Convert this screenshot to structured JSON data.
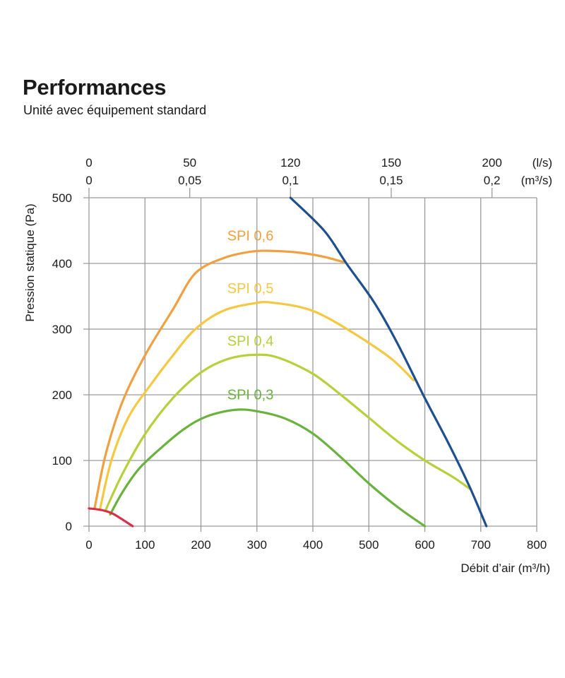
{
  "title": "Performances",
  "subtitle": "Unité avec équipement standard",
  "chart_data": {
    "type": "line",
    "xlabel": "Débit d’air (m³/h)",
    "ylabel": "Pression statique  (Pa)",
    "xlim": [
      0,
      800
    ],
    "ylim": [
      0,
      500
    ],
    "x_ticks": [
      "0",
      "100",
      "200",
      "300",
      "400",
      "500",
      "600",
      "700",
      "800"
    ],
    "y_ticks": [
      "0",
      "100",
      "200",
      "300",
      "400",
      "500"
    ],
    "grid": true,
    "top_axis_ls": {
      "unit": "(l/s)",
      "ticks": [
        {
          "label": "0",
          "x": 0
        },
        {
          "label": "50",
          "x": 180
        },
        {
          "label": "120",
          "x": 360
        },
        {
          "label": "150",
          "x": 540
        },
        {
          "label": "200",
          "x": 720
        }
      ]
    },
    "top_axis_m3s": {
      "unit": "(m³/s)",
      "ticks": [
        {
          "label": "0",
          "x": 0
        },
        {
          "label": "0,05",
          "x": 180
        },
        {
          "label": "0,1",
          "x": 360
        },
        {
          "label": "0,15",
          "x": 540
        },
        {
          "label": "0,2",
          "x": 720
        }
      ]
    },
    "series": [
      {
        "name": "SPI 0,6",
        "color": "#f0a040",
        "label_pos": [
          247,
          435
        ],
        "points": [
          [
            10,
            27
          ],
          [
            30,
            110
          ],
          [
            60,
            190
          ],
          [
            100,
            260
          ],
          [
            150,
            330
          ],
          [
            190,
            385
          ],
          [
            240,
            408
          ],
          [
            290,
            418
          ],
          [
            330,
            419
          ],
          [
            380,
            416
          ],
          [
            420,
            410
          ],
          [
            455,
            402
          ]
        ]
      },
      {
        "name": "SPI 0,5",
        "color": "#f5c842",
        "label_pos": [
          247,
          355
        ],
        "points": [
          [
            20,
            27
          ],
          [
            40,
            100
          ],
          [
            70,
            165
          ],
          [
            110,
            215
          ],
          [
            150,
            260
          ],
          [
            190,
            300
          ],
          [
            240,
            328
          ],
          [
            300,
            340
          ],
          [
            330,
            340
          ],
          [
            380,
            333
          ],
          [
            420,
            320
          ],
          [
            480,
            290
          ],
          [
            540,
            255
          ],
          [
            580,
            222
          ]
        ]
      },
      {
        "name": "SPI 0,4",
        "color": "#b8cf3c",
        "label_pos": [
          247,
          275
        ],
        "points": [
          [
            30,
            25
          ],
          [
            60,
            80
          ],
          [
            100,
            140
          ],
          [
            150,
            195
          ],
          [
            200,
            234
          ],
          [
            250,
            255
          ],
          [
            300,
            261
          ],
          [
            340,
            256
          ],
          [
            400,
            232
          ],
          [
            450,
            200
          ],
          [
            500,
            165
          ],
          [
            550,
            130
          ],
          [
            600,
            100
          ],
          [
            650,
            75
          ],
          [
            680,
            57
          ]
        ]
      },
      {
        "name": "SPI 0,3",
        "color": "#6ab23e",
        "label_pos": [
          247,
          193
        ],
        "points": [
          [
            38,
            18
          ],
          [
            60,
            52
          ],
          [
            90,
            88
          ],
          [
            130,
            120
          ],
          [
            170,
            148
          ],
          [
            210,
            167
          ],
          [
            260,
            177
          ],
          [
            300,
            175
          ],
          [
            350,
            164
          ],
          [
            400,
            141
          ],
          [
            450,
            105
          ],
          [
            500,
            65
          ],
          [
            550,
            30
          ],
          [
            600,
            0
          ]
        ]
      },
      {
        "name": "",
        "color": "#1e4f8f",
        "points": [
          [
            360,
            500
          ],
          [
            420,
            450
          ],
          [
            460,
            400
          ],
          [
            510,
            340
          ],
          [
            550,
            280
          ],
          [
            600,
            195
          ],
          [
            640,
            130
          ],
          [
            680,
            60
          ],
          [
            710,
            0
          ]
        ]
      },
      {
        "name": "",
        "color": "#d9304a",
        "points": [
          [
            0,
            27
          ],
          [
            20,
            25
          ],
          [
            40,
            20
          ],
          [
            60,
            10
          ],
          [
            78,
            0
          ]
        ]
      }
    ]
  }
}
